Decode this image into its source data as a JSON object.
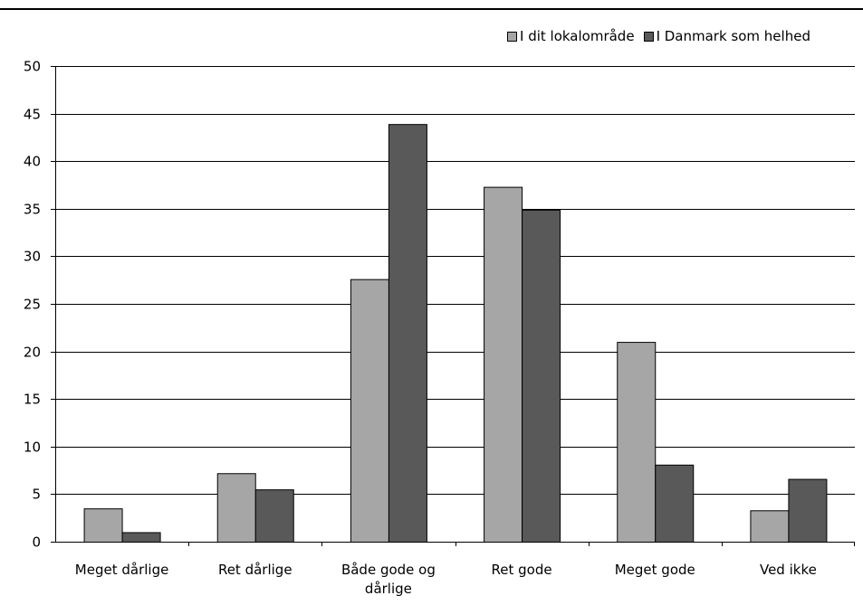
{
  "chart_data": {
    "type": "bar",
    "categories": [
      "Meget dårlige",
      "Ret dårlige",
      "Både gode og dårlige",
      "Ret gode",
      "Meget gode",
      "Ved ikke"
    ],
    "category_lines": [
      [
        "Meget dårlige"
      ],
      [
        "Ret dårlige"
      ],
      [
        "Både gode og",
        "dårlige"
      ],
      [
        "Ret gode"
      ],
      [
        "Meget gode"
      ],
      [
        "Ved ikke"
      ]
    ],
    "series": [
      {
        "name": "I dit lokalområde",
        "color": "#a6a6a6",
        "values": [
          3.5,
          7.2,
          27.6,
          37.3,
          21.0,
          3.3
        ]
      },
      {
        "name": "I Danmark som helhed",
        "color": "#595959",
        "values": [
          1.0,
          5.5,
          43.9,
          34.9,
          8.1,
          6.6
        ]
      }
    ],
    "ylim": [
      0,
      50
    ],
    "yticks": [
      0,
      5,
      10,
      15,
      20,
      25,
      30,
      35,
      40,
      45,
      50
    ],
    "grid": true,
    "legend": "top-right"
  }
}
